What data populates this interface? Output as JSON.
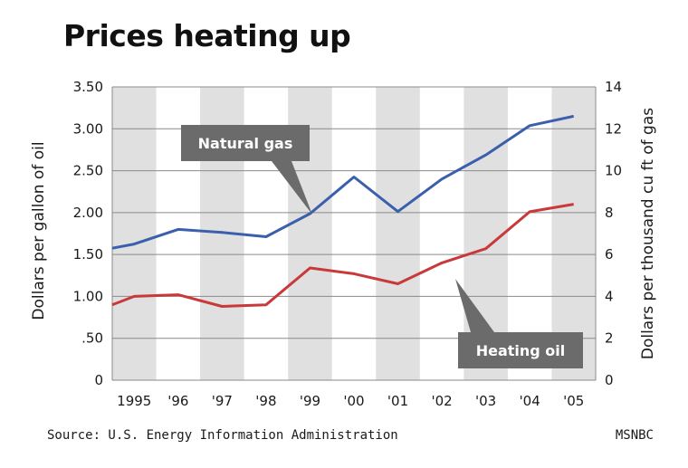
{
  "chart_data": {
    "type": "line",
    "title": "Prices heating up",
    "categories": [
      "1995",
      "'96",
      "'97",
      "'98",
      "'99",
      "'00",
      "'01",
      "'02",
      "'03",
      "'04",
      "'05"
    ],
    "x": [
      1995.0,
      1995.5,
      1996.5,
      1997.5,
      1998.5,
      1999.5,
      2000.5,
      2001.5,
      2002.5,
      2003.5,
      2004.5,
      2005.5
    ],
    "series": [
      {
        "name": "Natural gas",
        "axis": "right",
        "color": "#3a5fad",
        "values": [
          6.3,
          6.5,
          7.2,
          7.05,
          6.85,
          7.95,
          9.7,
          8.05,
          9.6,
          10.75,
          12.15,
          12.6
        ]
      },
      {
        "name": "Heating oil",
        "axis": "left",
        "color": "#c9393a",
        "values": [
          0.9,
          1.0,
          1.02,
          0.88,
          0.9,
          1.34,
          1.27,
          1.15,
          1.4,
          1.57,
          2.01,
          2.1
        ]
      }
    ],
    "ylabel": "Dollars per gallon of oil",
    "y2label": "Dollars per thousand cu ft of gas",
    "ylim": [
      0,
      3.5
    ],
    "y2lim": [
      0,
      14
    ],
    "yticks": [
      "0",
      ".50",
      "1.00",
      "1.50",
      "2.00",
      "2.50",
      "3.00",
      "3.50"
    ],
    "y2ticks": [
      "0",
      "2",
      "4",
      "6",
      "8",
      "10",
      "12",
      "14"
    ],
    "grid": "alternating vertical bands",
    "annotations": [
      "Natural gas",
      "Heating oil"
    ]
  },
  "footer": {
    "source": "Source: U.S. Energy Information Administration",
    "credit": "MSNBC"
  }
}
